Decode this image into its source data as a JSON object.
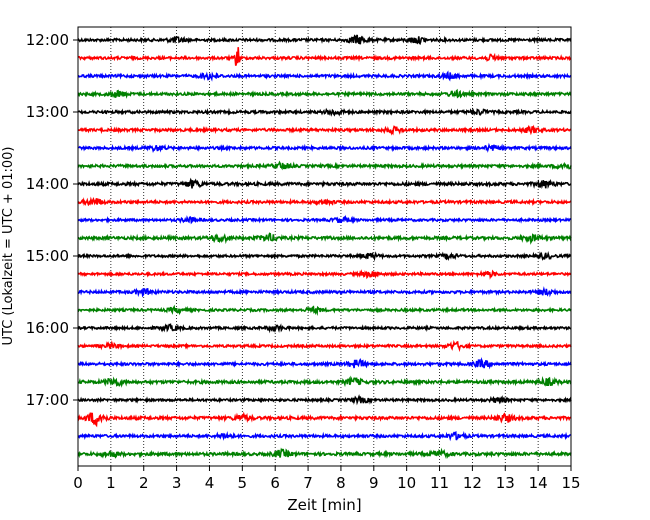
{
  "chart_data": {
    "type": "line",
    "title": "",
    "xlabel": "Zeit  [min]",
    "ylabel": "UTC (Lokalzeit = UTC + 01:00)",
    "xlim": [
      0,
      15
    ],
    "x_ticks": [
      "0",
      "1",
      "2",
      "3",
      "4",
      "5",
      "6",
      "7",
      "8",
      "9",
      "10",
      "11",
      "12",
      "13",
      "14",
      "15"
    ],
    "y_ticks": [
      "12:00",
      "13:00",
      "14:00",
      "15:00",
      "16:00",
      "17:00"
    ],
    "grid": "vertical dotted lines at each minute",
    "trace_interval_minutes": 15,
    "trace_colors": [
      "#000000",
      "#ff0000",
      "#0000ff",
      "#008000"
    ],
    "series": [
      {
        "start_time": "12:00",
        "color": "#000000",
        "amplitude": 0.18,
        "bursts": [
          {
            "x": 3.0,
            "amp": 0.35
          },
          {
            "x": 8.5,
            "amp": 0.55
          },
          {
            "x": 10.3,
            "amp": 0.4
          }
        ]
      },
      {
        "start_time": "12:15",
        "color": "#ff0000",
        "amplitude": 0.18,
        "bursts": [
          {
            "x": 4.85,
            "amp": 2.0
          },
          {
            "x": 12.6,
            "amp": 0.35
          }
        ]
      },
      {
        "start_time": "12:30",
        "color": "#0000ff",
        "amplitude": 0.18,
        "bursts": [
          {
            "x": 4.0,
            "amp": 0.4
          },
          {
            "x": 11.3,
            "amp": 0.35
          }
        ]
      },
      {
        "start_time": "12:45",
        "color": "#008000",
        "amplitude": 0.18,
        "bursts": [
          {
            "x": 1.2,
            "amp": 0.4
          },
          {
            "x": 11.5,
            "amp": 0.35
          }
        ]
      },
      {
        "start_time": "13:00",
        "color": "#000000",
        "amplitude": 0.18,
        "bursts": [
          {
            "x": 7.8,
            "amp": 0.35
          },
          {
            "x": 12.2,
            "amp": 0.3
          }
        ]
      },
      {
        "start_time": "13:15",
        "color": "#ff0000",
        "amplitude": 0.18,
        "bursts": [
          {
            "x": 9.6,
            "amp": 0.35
          },
          {
            "x": 13.8,
            "amp": 0.35
          }
        ]
      },
      {
        "start_time": "13:30",
        "color": "#0000ff",
        "amplitude": 0.18,
        "bursts": [
          {
            "x": 2.4,
            "amp": 0.3
          },
          {
            "x": 12.6,
            "amp": 0.3
          }
        ]
      },
      {
        "start_time": "13:45",
        "color": "#008000",
        "amplitude": 0.18,
        "bursts": [
          {
            "x": 6.2,
            "amp": 0.4
          },
          {
            "x": 14.8,
            "amp": 0.4
          }
        ]
      },
      {
        "start_time": "14:00",
        "color": "#000000",
        "amplitude": 0.2,
        "bursts": [
          {
            "x": 3.5,
            "amp": 0.45
          },
          {
            "x": 14.2,
            "amp": 0.45
          }
        ]
      },
      {
        "start_time": "14:15",
        "color": "#ff0000",
        "amplitude": 0.18,
        "bursts": [
          {
            "x": 0.5,
            "amp": 0.45
          },
          {
            "x": 7.5,
            "amp": 0.3
          }
        ]
      },
      {
        "start_time": "14:30",
        "color": "#0000ff",
        "amplitude": 0.16,
        "bursts": [
          {
            "x": 3.4,
            "amp": 0.3
          },
          {
            "x": 8.0,
            "amp": 0.3
          }
        ]
      },
      {
        "start_time": "14:45",
        "color": "#008000",
        "amplitude": 0.2,
        "bursts": [
          {
            "x": 4.3,
            "amp": 0.45
          },
          {
            "x": 5.8,
            "amp": 0.45
          },
          {
            "x": 13.8,
            "amp": 0.4
          }
        ]
      },
      {
        "start_time": "15:00",
        "color": "#000000",
        "amplitude": 0.16,
        "bursts": [
          {
            "x": 8.9,
            "amp": 0.3
          },
          {
            "x": 11.3,
            "amp": 0.3
          },
          {
            "x": 14.2,
            "amp": 0.3
          }
        ]
      },
      {
        "start_time": "15:15",
        "color": "#ff0000",
        "amplitude": 0.16,
        "bursts": [
          {
            "x": 8.9,
            "amp": 0.4
          },
          {
            "x": 12.5,
            "amp": 0.3
          }
        ]
      },
      {
        "start_time": "15:30",
        "color": "#0000ff",
        "amplitude": 0.18,
        "bursts": [
          {
            "x": 2.0,
            "amp": 0.35
          },
          {
            "x": 14.2,
            "amp": 0.35
          }
        ]
      },
      {
        "start_time": "15:45",
        "color": "#008000",
        "amplitude": 0.16,
        "bursts": [
          {
            "x": 3.0,
            "amp": 0.3
          },
          {
            "x": 7.2,
            "amp": 0.3
          }
        ]
      },
      {
        "start_time": "16:00",
        "color": "#000000",
        "amplitude": 0.16,
        "bursts": [
          {
            "x": 2.8,
            "amp": 0.35
          },
          {
            "x": 6.0,
            "amp": 0.3
          }
        ]
      },
      {
        "start_time": "16:15",
        "color": "#ff0000",
        "amplitude": 0.16,
        "bursts": [
          {
            "x": 11.5,
            "amp": 0.45
          },
          {
            "x": 1.0,
            "amp": 0.25
          }
        ]
      },
      {
        "start_time": "16:30",
        "color": "#0000ff",
        "amplitude": 0.18,
        "bursts": [
          {
            "x": 8.5,
            "amp": 0.5
          },
          {
            "x": 12.3,
            "amp": 0.45
          }
        ]
      },
      {
        "start_time": "16:45",
        "color": "#008000",
        "amplitude": 0.2,
        "bursts": [
          {
            "x": 1.1,
            "amp": 0.5
          },
          {
            "x": 8.4,
            "amp": 0.45
          },
          {
            "x": 14.3,
            "amp": 0.4
          }
        ]
      },
      {
        "start_time": "17:00",
        "color": "#000000",
        "amplitude": 0.16,
        "bursts": [
          {
            "x": 8.6,
            "amp": 0.35
          },
          {
            "x": 12.8,
            "amp": 0.3
          }
        ]
      },
      {
        "start_time": "17:15",
        "color": "#ff0000",
        "amplitude": 0.2,
        "bursts": [
          {
            "x": 0.55,
            "amp": 0.9
          },
          {
            "x": 5.0,
            "amp": 0.35
          },
          {
            "x": 13.0,
            "amp": 0.45
          }
        ]
      },
      {
        "start_time": "17:30",
        "color": "#0000ff",
        "amplitude": 0.18,
        "bursts": [
          {
            "x": 11.5,
            "amp": 0.4
          },
          {
            "x": 4.5,
            "amp": 0.3
          }
        ]
      },
      {
        "start_time": "17:45",
        "color": "#008000",
        "amplitude": 0.2,
        "bursts": [
          {
            "x": 6.2,
            "amp": 0.45
          },
          {
            "x": 1.0,
            "amp": 0.35
          },
          {
            "x": 11.0,
            "amp": 0.35
          }
        ]
      }
    ]
  }
}
